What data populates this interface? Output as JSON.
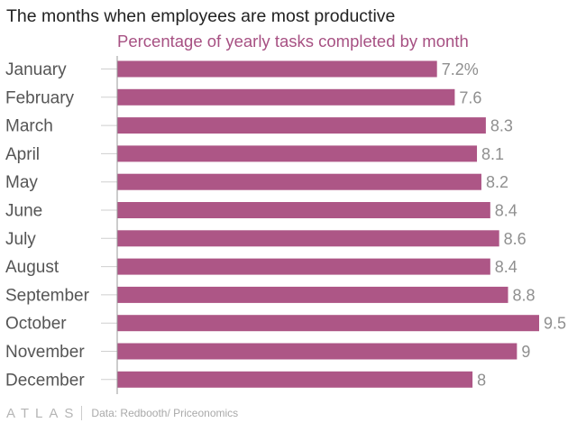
{
  "title": "The months when employees are most productive",
  "subtitle": "Percentage of yearly tasks completed by month",
  "colors": {
    "bar": "#ad5686",
    "subtitle": "#a75183",
    "category_text": "#555555",
    "value_text": "#8f8f8f",
    "axis": "#999999",
    "tick": "#cfcfcf"
  },
  "footer": {
    "logo": "ATLAS",
    "source": "Data: Redbooth/ Priceonomics"
  },
  "chart_data": {
    "type": "bar",
    "orientation": "horizontal",
    "title": "The months when employees are most productive",
    "subtitle": "Percentage of yearly tasks completed by month",
    "categories": [
      "January",
      "February",
      "March",
      "April",
      "May",
      "June",
      "July",
      "August",
      "September",
      "October",
      "November",
      "December"
    ],
    "values": [
      7.2,
      7.6,
      8.3,
      8.1,
      8.2,
      8.4,
      8.6,
      8.4,
      8.8,
      9.5,
      9,
      8
    ],
    "value_labels": [
      "7.2%",
      "7.6",
      "8.3",
      "8.1",
      "8.2",
      "8.4",
      "8.6",
      "8.4",
      "8.8",
      "9.5",
      "9",
      "8"
    ],
    "xlim": [
      0,
      9.5
    ],
    "grid": false,
    "legend": "none"
  }
}
